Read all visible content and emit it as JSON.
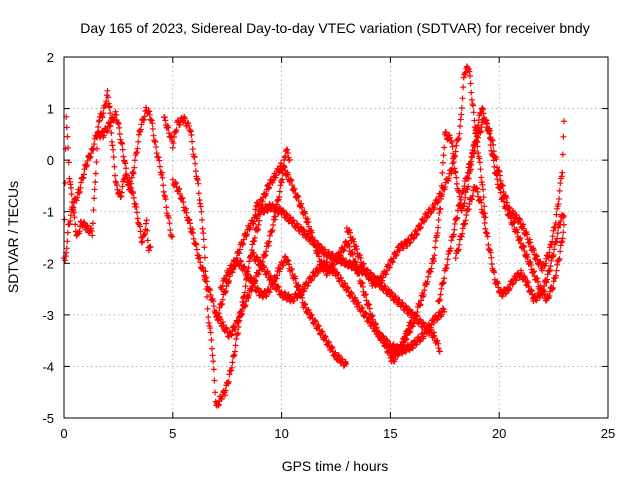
{
  "chart_data": {
    "type": "scatter",
    "title": "Day 165 of 2023, Sidereal Day-to-day VTEC variation (SDTVAR) for receiver bndy",
    "xlabel": "GPS time / hours",
    "ylabel": "SDTVAR / TECUs",
    "xlim": [
      0,
      25
    ],
    "ylim": [
      -5,
      2
    ],
    "xticks": [
      0,
      5,
      10,
      15,
      20,
      25
    ],
    "yticks": [
      -5,
      -4,
      -3,
      -2,
      -1,
      0,
      1,
      2
    ],
    "grid": true,
    "marker": "plus",
    "color": "#ff0000",
    "series": [
      {
        "name": "trace-1",
        "x": [
          0.0,
          0.1,
          0.25,
          0.4,
          0.6,
          0.8,
          1.0,
          1.3,
          1.6,
          1.8,
          2.0,
          2.1,
          2.2,
          2.4,
          2.6,
          2.8,
          3.0,
          3.3,
          3.6,
          3.8,
          3.9,
          4.0
        ],
        "y": [
          -1.9,
          0.9,
          -0.3,
          -0.9,
          -1.5,
          -1.2,
          -1.3,
          -1.4,
          0.8,
          0.9,
          1.3,
          1.0,
          0.4,
          -0.5,
          -0.7,
          -0.3,
          -0.4,
          -0.9,
          -1.6,
          -1.2,
          -1.8,
          -1.6
        ]
      },
      {
        "name": "trace-2",
        "x": [
          0.05,
          0.2,
          0.4,
          0.7,
          1.0,
          1.3,
          1.5,
          1.8,
          2.1,
          2.4,
          2.7,
          3.0,
          3.2,
          3.5,
          3.8,
          4.0,
          4.2,
          4.5,
          4.7,
          5.0
        ],
        "y": [
          -2.0,
          -1.3,
          -0.9,
          -0.6,
          -0.1,
          0.2,
          0.5,
          0.5,
          0.7,
          0.9,
          0.2,
          -0.6,
          -0.2,
          0.6,
          1.0,
          0.8,
          0.3,
          -0.3,
          -0.9,
          -1.6
        ]
      },
      {
        "name": "trace-3",
        "x": [
          4.6,
          4.8,
          5.0,
          5.2,
          5.5,
          5.8,
          6.0,
          6.2,
          6.4,
          6.5,
          6.6,
          6.8,
          7.0,
          7.2,
          7.4,
          7.6,
          7.8,
          8.0,
          8.2,
          8.4,
          8.6,
          8.8,
          9.0
        ],
        "y": [
          0.8,
          0.6,
          0.3,
          0.7,
          0.8,
          0.6,
          0.0,
          -0.6,
          -1.4,
          -2.1,
          -2.9,
          -3.6,
          -4.8,
          -4.6,
          -4.5,
          -4.2,
          -3.8,
          -3.3,
          -2.8,
          -2.3,
          -1.8,
          -1.4,
          -1.2
        ]
      },
      {
        "name": "trace-4",
        "x": [
          5.0,
          5.3,
          5.6,
          5.9,
          6.2,
          6.5,
          6.8,
          7.0,
          7.3,
          7.6,
          7.9,
          8.2,
          8.5,
          8.8,
          9.1,
          9.4,
          9.7,
          10.0,
          10.2,
          10.4
        ],
        "y": [
          -0.4,
          -0.6,
          -1.0,
          -1.4,
          -1.9,
          -2.3,
          -2.7,
          -3.0,
          -3.2,
          -3.4,
          -3.2,
          -2.9,
          -2.6,
          -2.3,
          -2.0,
          -1.6,
          -1.1,
          -0.4,
          0.2,
          0.0
        ]
      },
      {
        "name": "trace-5",
        "x": [
          7.2,
          7.5,
          7.8,
          8.1,
          8.4,
          8.7,
          9.0,
          9.3,
          9.6,
          9.9,
          10.2,
          10.5,
          10.8,
          11.0,
          11.3,
          11.6,
          11.9,
          12.2,
          12.5,
          12.8,
          13.0
        ],
        "y": [
          -2.5,
          -2.2,
          -2.0,
          -2.0,
          -2.2,
          -2.4,
          -2.6,
          -2.6,
          -2.4,
          -2.1,
          -1.9,
          -2.2,
          -2.5,
          -2.8,
          -3.0,
          -3.2,
          -3.4,
          -3.6,
          -3.8,
          -3.9,
          -4.0
        ]
      },
      {
        "name": "trace-6",
        "x": [
          7.0,
          7.5,
          8.0,
          8.5,
          9.0,
          9.5,
          10.0,
          10.5,
          11.0,
          11.5,
          12.0,
          12.5,
          13.0,
          13.5,
          14.0,
          14.5,
          15.0,
          15.5,
          16.0,
          16.5,
          17.0,
          17.3
        ],
        "y": [
          -3.1,
          -2.4,
          -1.8,
          -1.3,
          -1.0,
          -0.9,
          -1.0,
          -1.2,
          -1.4,
          -1.6,
          -1.8,
          -1.9,
          -2.0,
          -2.1,
          -2.2,
          -2.4,
          -2.6,
          -2.8,
          -3.0,
          -3.2,
          -3.4,
          -3.7
        ]
      },
      {
        "name": "trace-7",
        "x": [
          8.8,
          9.1,
          9.4,
          9.7,
          10.0,
          10.3,
          10.6,
          10.9,
          11.2,
          11.5,
          11.8,
          12.1,
          12.4,
          12.7,
          13.0,
          13.3,
          13.6,
          13.9,
          14.2,
          14.5,
          14.8,
          15.1,
          15.4,
          15.7,
          16.0
        ],
        "y": [
          -0.9,
          -0.8,
          -0.5,
          -0.3,
          -0.1,
          -0.3,
          -0.6,
          -0.9,
          -1.2,
          -1.6,
          -2.0,
          -2.2,
          -2.0,
          -1.8,
          -1.6,
          -1.9,
          -2.3,
          -2.7,
          -3.1,
          -3.4,
          -3.6,
          -3.9,
          -3.7,
          -3.4,
          -3.1
        ]
      },
      {
        "name": "trace-8",
        "x": [
          8.6,
          9.0,
          9.5,
          10.0,
          10.5,
          11.0,
          11.5,
          12.0,
          12.5,
          13.0,
          13.5,
          14.0,
          14.5,
          15.0,
          15.5,
          16.0,
          16.5,
          17.0,
          17.5
        ],
        "y": [
          -1.8,
          -2.0,
          -2.3,
          -2.6,
          -2.7,
          -2.5,
          -2.2,
          -2.0,
          -2.2,
          -2.5,
          -2.8,
          -3.1,
          -3.4,
          -3.6,
          -3.7,
          -3.6,
          -3.4,
          -3.1,
          -2.9
        ]
      },
      {
        "name": "trace-9",
        "x": [
          13.0,
          13.4,
          13.8,
          14.2,
          14.6,
          15.0,
          15.4,
          15.8,
          16.2,
          16.6,
          17.0,
          17.4,
          17.8,
          18.2,
          18.4,
          18.6,
          18.8,
          19.0,
          19.2,
          19.4
        ],
        "y": [
          -1.3,
          -1.7,
          -2.1,
          -2.4,
          -2.3,
          -2.0,
          -1.7,
          -1.6,
          -1.4,
          -1.1,
          -0.9,
          -0.6,
          -0.2,
          0.6,
          1.7,
          1.8,
          1.0,
          0.3,
          -0.4,
          -1.2
        ]
      },
      {
        "name": "trace-10",
        "x": [
          15.0,
          15.5,
          16.0,
          16.5,
          17.0,
          17.3,
          17.5,
          17.8,
          18.0,
          18.3,
          18.6,
          18.9,
          19.2,
          19.5,
          19.8,
          20.1,
          20.4,
          20.7,
          21.0,
          21.3,
          21.6,
          21.9,
          22.2,
          22.5,
          22.8,
          23.0
        ],
        "y": [
          -3.8,
          -3.6,
          -3.2,
          -2.6,
          -1.9,
          -0.9,
          0.5,
          0.4,
          -0.3,
          -1.0,
          -0.4,
          0.5,
          1.0,
          0.6,
          -0.2,
          -0.7,
          -1.0,
          -1.3,
          -1.6,
          -1.9,
          -2.2,
          -2.5,
          -2.7,
          -2.4,
          -1.8,
          -1.2
        ]
      },
      {
        "name": "trace-11",
        "x": [
          17.2,
          17.5,
          17.8,
          18.1,
          18.4,
          18.7,
          19.0,
          19.3,
          19.6,
          19.9,
          20.2,
          20.5,
          20.8,
          21.1,
          21.4,
          21.7,
          22.0,
          22.3,
          22.6,
          22.9,
          23.0
        ],
        "y": [
          -2.8,
          -2.2,
          -1.6,
          -1.0,
          -0.5,
          0.0,
          0.4,
          0.8,
          0.5,
          -0.1,
          -0.6,
          -1.0,
          -1.1,
          -1.3,
          -1.6,
          -1.9,
          -2.1,
          -1.8,
          -1.2,
          -0.2,
          1.0
        ]
      },
      {
        "name": "trace-12",
        "x": [
          18.0,
          18.3,
          18.6,
          18.9,
          19.2,
          19.5,
          19.8,
          20.1,
          20.4,
          20.7,
          21.0,
          21.3,
          21.6,
          21.9,
          22.2,
          22.5,
          22.8,
          23.0
        ],
        "y": [
          -1.9,
          -1.4,
          -0.9,
          -0.5,
          -0.9,
          -1.6,
          -2.3,
          -2.6,
          -2.5,
          -2.3,
          -2.2,
          -2.4,
          -2.7,
          -2.6,
          -2.3,
          -1.8,
          -1.2,
          -1.0
        ]
      }
    ]
  }
}
